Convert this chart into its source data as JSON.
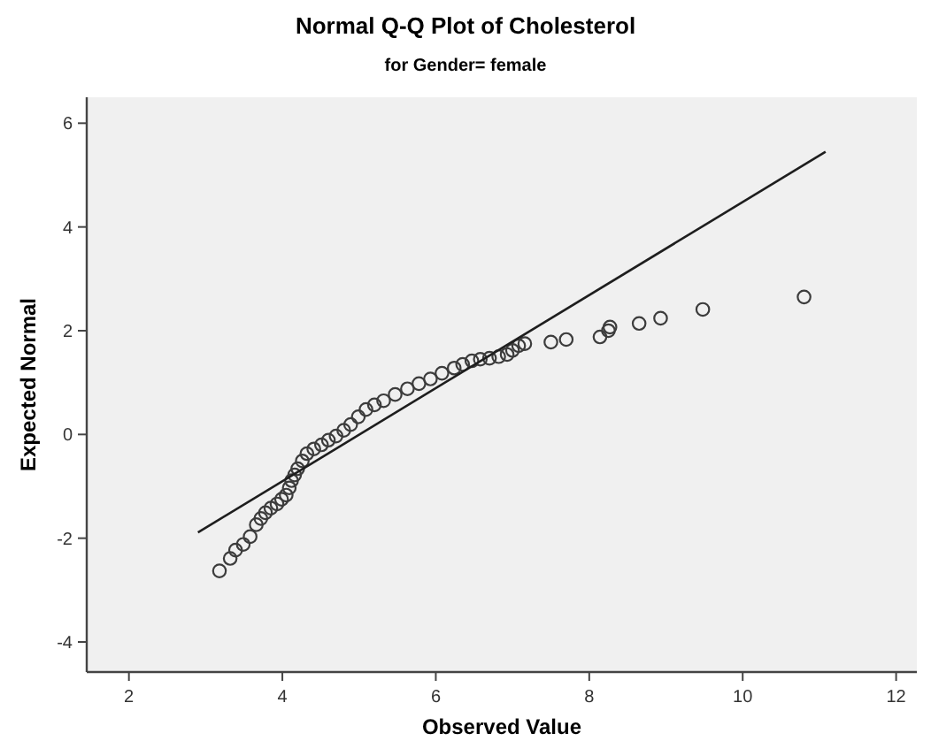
{
  "chart_data": {
    "type": "scatter",
    "title": "Normal Q-Q Plot of Cholesterol",
    "subtitle": "for Gender= female",
    "xlabel": "Observed Value",
    "ylabel": "Expected Normal",
    "xlim": [
      1.45,
      12.27
    ],
    "ylim": [
      -4.58,
      6.5
    ],
    "xticks": [
      2,
      4,
      6,
      8,
      10,
      12
    ],
    "yticks": [
      -4,
      -2,
      0,
      2,
      4,
      6
    ],
    "grid": false,
    "marker": "circle",
    "series": [
      {
        "color": "#3c3c3c",
        "x": [
          3.18,
          3.32,
          3.39,
          3.49,
          3.58,
          3.66,
          3.72,
          3.78,
          3.85,
          3.93,
          3.99,
          4.05,
          4.09,
          4.12,
          4.16,
          4.2,
          4.26,
          4.32,
          4.41,
          4.51,
          4.6,
          4.7,
          4.8,
          4.89,
          4.99,
          5.09,
          5.2,
          5.32,
          5.47,
          5.63,
          5.78,
          5.93,
          6.08,
          6.24,
          6.35,
          6.47,
          6.58,
          6.7,
          6.82,
          6.93,
          7.0,
          7.08,
          7.16,
          7.5,
          7.7,
          8.14,
          8.25,
          8.27,
          8.65,
          8.93,
          9.48,
          10.8
        ],
        "values": [
          -2.63,
          -2.39,
          -2.23,
          -2.12,
          -1.97,
          -1.74,
          -1.62,
          -1.51,
          -1.42,
          -1.34,
          -1.25,
          -1.17,
          -1.03,
          -0.89,
          -0.78,
          -0.66,
          -0.51,
          -0.37,
          -0.28,
          -0.2,
          -0.11,
          -0.03,
          0.08,
          0.19,
          0.34,
          0.48,
          0.57,
          0.65,
          0.77,
          0.88,
          0.98,
          1.07,
          1.18,
          1.28,
          1.35,
          1.42,
          1.45,
          1.47,
          1.5,
          1.54,
          1.62,
          1.71,
          1.75,
          1.78,
          1.83,
          1.88,
          2.0,
          2.07,
          2.14,
          2.24,
          2.41,
          2.65
        ]
      },
      {
        "type": "line",
        "color": "#1e1e1e",
        "x": [
          2.9,
          11.08
        ],
        "values": [
          -1.89,
          5.45
        ],
        "marker": "none"
      }
    ]
  }
}
